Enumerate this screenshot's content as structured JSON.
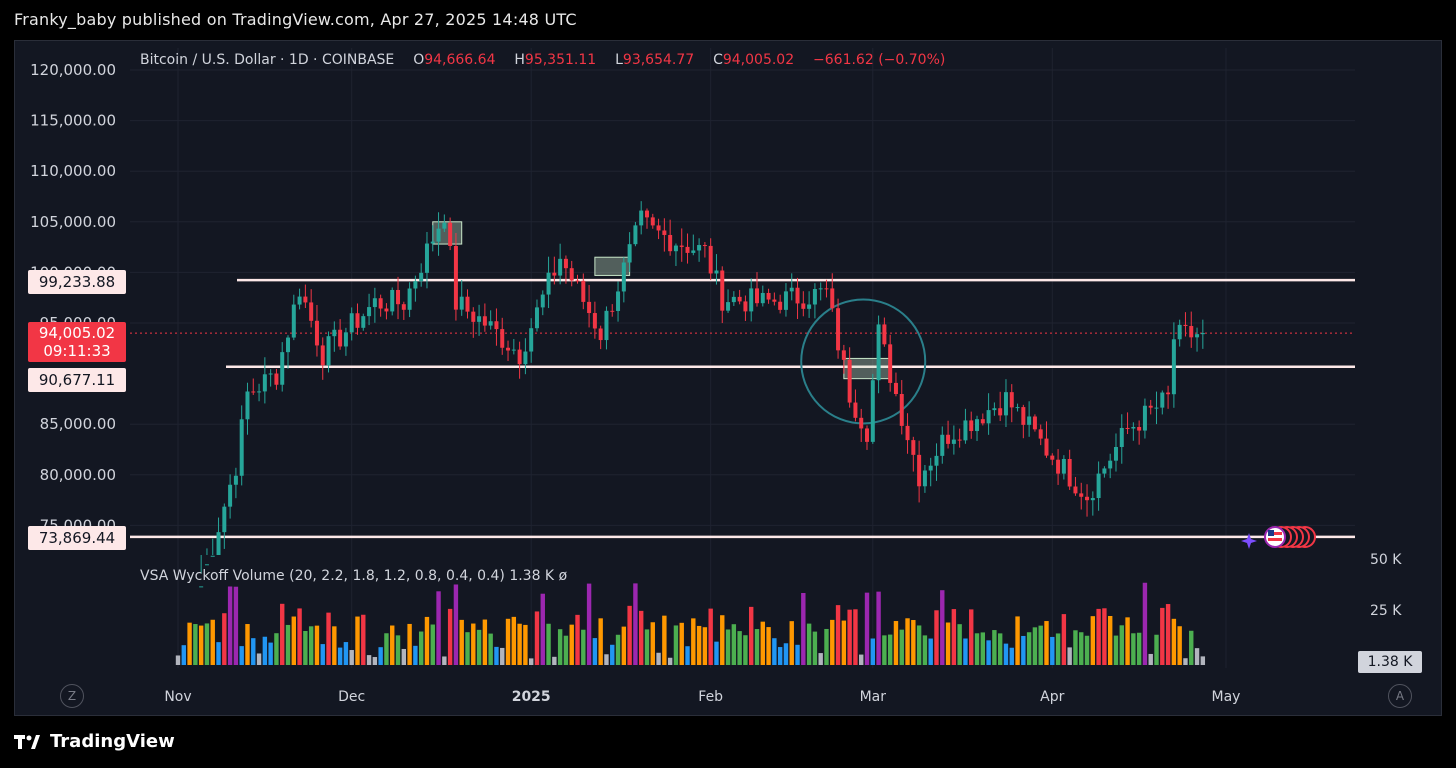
{
  "header": {
    "publisher": "Franky_baby published on TradingView.com, Apr 27, 2025 14:48 UTC"
  },
  "legend": {
    "symbol": "Bitcoin / U.S. Dollar · 1D · COINBASE",
    "o_label": "O",
    "o_value": "94,666.64",
    "h_label": "H",
    "h_value": "95,351.11",
    "l_label": "L",
    "l_value": "93,654.77",
    "c_label": "C",
    "c_value": "94,005.02",
    "change": "−661.62 (−0.70%)"
  },
  "indicator": {
    "label": "VSA Wyckoff Volume (20, 2.2, 1.8, 1.2, 0.8, 0.4, 0.4)",
    "value": "1.38 K",
    "icon": "ø"
  },
  "price_labels": {
    "resistance": "99,233.88",
    "current_price": "94,005.02",
    "countdown": "09:11:33",
    "mid_level": "90,677.11",
    "support": "73,869.44"
  },
  "volume_badge": "1.38 K",
  "scale_buttons": {
    "left": "Z",
    "right": "A"
  },
  "footer": {
    "brand": "TradingView"
  },
  "colors": {
    "up": "#26a69a",
    "down": "#f23645",
    "background": "#131722",
    "level_line": "#fde8e8",
    "circle": "#2a7f8a"
  },
  "chart_data": [
    {
      "type": "candlestick",
      "title": "Bitcoin / U.S. Dollar · 1D · COINBASE",
      "y_tick_labels": [
        "120,000.00",
        "115,000.00",
        "110,000.00",
        "105,000.00",
        "100,000.00",
        "95,000.00",
        "85,000.00",
        "80,000.00",
        "75,000.00"
      ],
      "x_tick_labels": [
        "Nov",
        "Dec",
        "2025",
        "Feb",
        "Mar",
        "Apr",
        "May"
      ],
      "ylim": [
        72000,
        122000
      ],
      "horizontal_levels": [
        99233.88,
        90677.11,
        73869.44
      ],
      "current_price": 94005.02,
      "approx_close_path": [
        [
          "2024-11-05",
          69000
        ],
        [
          "2024-11-11",
          81000
        ],
        [
          "2024-11-13",
          88000
        ],
        [
          "2024-11-18",
          90000
        ],
        [
          "2024-11-22",
          98500
        ],
        [
          "2024-11-26",
          92000
        ],
        [
          "2024-12-05",
          97000
        ],
        [
          "2024-12-10",
          97000
        ],
        [
          "2024-12-17",
          106000
        ],
        [
          "2024-12-19",
          97000
        ],
        [
          "2024-12-24",
          95000
        ],
        [
          "2024-12-30",
          92000
        ],
        [
          "2025-01-06",
          101500
        ],
        [
          "2025-01-13",
          94000
        ],
        [
          "2025-01-20",
          105000
        ],
        [
          "2025-01-22",
          104000
        ],
        [
          "2025-01-31",
          102000
        ],
        [
          "2025-02-03",
          97500
        ],
        [
          "2025-02-10",
          97000
        ],
        [
          "2025-02-21",
          98000
        ],
        [
          "2025-02-25",
          88000
        ],
        [
          "2025-02-28",
          84500
        ],
        [
          "2025-03-02",
          94000
        ],
        [
          "2025-03-09",
          80000
        ],
        [
          "2025-03-14",
          84000
        ],
        [
          "2025-03-24",
          87500
        ],
        [
          "2025-03-31",
          82500
        ],
        [
          "2025-04-07",
          78000
        ],
        [
          "2025-04-14",
          84500
        ],
        [
          "2025-04-21",
          87500
        ],
        [
          "2025-04-22",
          93500
        ],
        [
          "2025-04-27",
          94005
        ]
      ],
      "annotations": [
        "highlight box Dec 17",
        "highlight box Jan 14",
        "highlight box Feb 26",
        "circle around Feb 25 – Mar 4 breakdown"
      ]
    },
    {
      "type": "bar",
      "title": "VSA Wyckoff Volume (20, 2.2, 1.8, 1.2, 0.8, 0.4, 0.4)",
      "y_tick_labels": [
        "50 K",
        "25 K"
      ],
      "ylim": [
        0,
        50000
      ],
      "last_value": "1.38 K",
      "color_classes": [
        "purple",
        "red",
        "orange",
        "green",
        "blue",
        "grey"
      ]
    }
  ]
}
